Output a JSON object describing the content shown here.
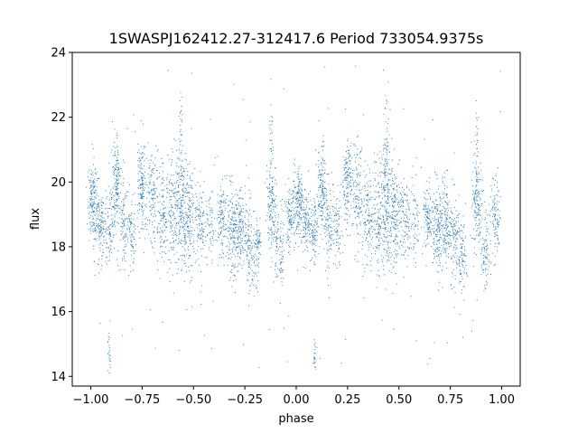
{
  "chart_data": {
    "type": "scatter",
    "title": "1SWASPJ162412.27-312417.6 Period 733054.9375s",
    "xlabel": "phase",
    "ylabel": "flux",
    "xlim": [
      -1.09,
      1.09
    ],
    "ylim": [
      13.7,
      24.0
    ],
    "x_ticks": [
      -1.0,
      -0.75,
      -0.5,
      -0.25,
      0.0,
      0.25,
      0.5,
      0.75,
      1.0
    ],
    "x_tick_labels": [
      "−1.00",
      "−0.75",
      "−0.50",
      "−0.25",
      "0.00",
      "0.25",
      "0.50",
      "0.75",
      "1.00"
    ],
    "y_ticks": [
      14,
      16,
      18,
      20,
      22,
      24
    ],
    "y_tick_labels": [
      "14",
      "16",
      "18",
      "20",
      "22",
      "24"
    ],
    "grid": false,
    "point_color": "#1f77b4",
    "series": [
      {
        "clusters": [
          {
            "x": -0.99,
            "y": 19.3,
            "sx": 0.012,
            "sy": 0.6,
            "n": 170
          },
          {
            "x": -0.95,
            "y": 18.7,
            "sx": 0.012,
            "sy": 0.55,
            "n": 110
          },
          {
            "x": -0.91,
            "y": 18.5,
            "sx": 0.012,
            "sy": 0.5,
            "n": 90
          },
          {
            "x": -0.875,
            "y": 19.8,
            "sx": 0.012,
            "sy": 0.65,
            "n": 140
          },
          {
            "x": -0.84,
            "y": 18.7,
            "sx": 0.012,
            "sy": 0.7,
            "n": 90
          },
          {
            "x": -0.8,
            "y": 18.5,
            "sx": 0.012,
            "sy": 0.6,
            "n": 80
          },
          {
            "x": -0.75,
            "y": 20.0,
            "sx": 0.012,
            "sy": 0.7,
            "n": 150
          },
          {
            "x": -0.7,
            "y": 19.5,
            "sx": 0.015,
            "sy": 0.8,
            "n": 130
          },
          {
            "x": -0.65,
            "y": 18.9,
            "sx": 0.012,
            "sy": 0.7,
            "n": 110
          },
          {
            "x": -0.6,
            "y": 19.0,
            "sx": 0.015,
            "sy": 0.9,
            "n": 150
          },
          {
            "x": -0.56,
            "y": 19.4,
            "sx": 0.014,
            "sy": 1.0,
            "n": 190
          },
          {
            "x": -0.52,
            "y": 18.9,
            "sx": 0.014,
            "sy": 0.8,
            "n": 150
          },
          {
            "x": -0.47,
            "y": 18.8,
            "sx": 0.014,
            "sy": 0.6,
            "n": 110
          },
          {
            "x": -0.42,
            "y": 18.7,
            "sx": 0.012,
            "sy": 0.6,
            "n": 60
          },
          {
            "x": -0.36,
            "y": 18.9,
            "sx": 0.014,
            "sy": 0.6,
            "n": 120
          },
          {
            "x": -0.31,
            "y": 18.5,
            "sx": 0.014,
            "sy": 0.7,
            "n": 170
          },
          {
            "x": -0.27,
            "y": 18.7,
            "sx": 0.012,
            "sy": 0.7,
            "n": 130
          },
          {
            "x": -0.23,
            "y": 18.2,
            "sx": 0.012,
            "sy": 0.7,
            "n": 110
          },
          {
            "x": -0.19,
            "y": 17.8,
            "sx": 0.012,
            "sy": 0.6,
            "n": 90
          },
          {
            "x": -0.12,
            "y": 19.3,
            "sx": 0.014,
            "sy": 0.7,
            "n": 150
          },
          {
            "x": -0.08,
            "y": 18.0,
            "sx": 0.012,
            "sy": 0.6,
            "n": 90
          },
          {
            "x": -0.03,
            "y": 18.9,
            "sx": 0.012,
            "sy": 0.6,
            "n": 110
          },
          {
            "x": 0.01,
            "y": 19.3,
            "sx": 0.012,
            "sy": 0.6,
            "n": 170
          },
          {
            "x": 0.05,
            "y": 18.7,
            "sx": 0.012,
            "sy": 0.55,
            "n": 110
          },
          {
            "x": 0.09,
            "y": 18.5,
            "sx": 0.012,
            "sy": 0.5,
            "n": 90
          },
          {
            "x": 0.125,
            "y": 19.8,
            "sx": 0.012,
            "sy": 0.65,
            "n": 140
          },
          {
            "x": 0.16,
            "y": 18.7,
            "sx": 0.012,
            "sy": 0.7,
            "n": 90
          },
          {
            "x": 0.2,
            "y": 18.5,
            "sx": 0.012,
            "sy": 0.6,
            "n": 80
          },
          {
            "x": 0.25,
            "y": 20.0,
            "sx": 0.012,
            "sy": 0.7,
            "n": 150
          },
          {
            "x": 0.3,
            "y": 19.5,
            "sx": 0.015,
            "sy": 0.8,
            "n": 130
          },
          {
            "x": 0.35,
            "y": 18.9,
            "sx": 0.012,
            "sy": 0.7,
            "n": 110
          },
          {
            "x": 0.4,
            "y": 19.0,
            "sx": 0.015,
            "sy": 0.9,
            "n": 150
          },
          {
            "x": 0.44,
            "y": 19.4,
            "sx": 0.014,
            "sy": 1.0,
            "n": 190
          },
          {
            "x": 0.48,
            "y": 18.9,
            "sx": 0.014,
            "sy": 0.8,
            "n": 150
          },
          {
            "x": 0.53,
            "y": 18.8,
            "sx": 0.014,
            "sy": 0.6,
            "n": 110
          },
          {
            "x": 0.58,
            "y": 18.7,
            "sx": 0.012,
            "sy": 0.6,
            "n": 60
          },
          {
            "x": 0.64,
            "y": 18.9,
            "sx": 0.014,
            "sy": 0.6,
            "n": 120
          },
          {
            "x": 0.69,
            "y": 18.5,
            "sx": 0.014,
            "sy": 0.7,
            "n": 170
          },
          {
            "x": 0.73,
            "y": 18.7,
            "sx": 0.012,
            "sy": 0.7,
            "n": 130
          },
          {
            "x": 0.77,
            "y": 18.2,
            "sx": 0.012,
            "sy": 0.7,
            "n": 110
          },
          {
            "x": 0.81,
            "y": 17.8,
            "sx": 0.012,
            "sy": 0.6,
            "n": 90
          },
          {
            "x": 0.88,
            "y": 19.3,
            "sx": 0.014,
            "sy": 0.7,
            "n": 150
          },
          {
            "x": 0.92,
            "y": 18.0,
            "sx": 0.012,
            "sy": 0.6,
            "n": 90
          },
          {
            "x": 0.97,
            "y": 18.9,
            "sx": 0.012,
            "sy": 0.6,
            "n": 110
          },
          {
            "x": -0.91,
            "y": 14.6,
            "sx": 0.004,
            "sy": 0.3,
            "n": 22
          },
          {
            "x": 0.09,
            "y": 14.6,
            "sx": 0.004,
            "sy": 0.3,
            "n": 22
          },
          {
            "x": -0.87,
            "y": 20.5,
            "sx": 0.005,
            "sy": 0.5,
            "n": 20
          },
          {
            "x": -0.56,
            "y": 21.5,
            "sx": 0.005,
            "sy": 0.7,
            "n": 25
          },
          {
            "x": -0.12,
            "y": 21.2,
            "sx": 0.005,
            "sy": 0.6,
            "n": 25
          },
          {
            "x": 0.13,
            "y": 20.5,
            "sx": 0.005,
            "sy": 0.5,
            "n": 20
          },
          {
            "x": 0.44,
            "y": 21.5,
            "sx": 0.005,
            "sy": 0.7,
            "n": 25
          },
          {
            "x": 0.88,
            "y": 21.2,
            "sx": 0.005,
            "sy": 0.6,
            "n": 25
          }
        ],
        "outlier_range": {
          "x": [
            -1.0,
            1.0
          ],
          "y": [
            14.2,
            23.6
          ],
          "n": 130
        }
      }
    ]
  }
}
